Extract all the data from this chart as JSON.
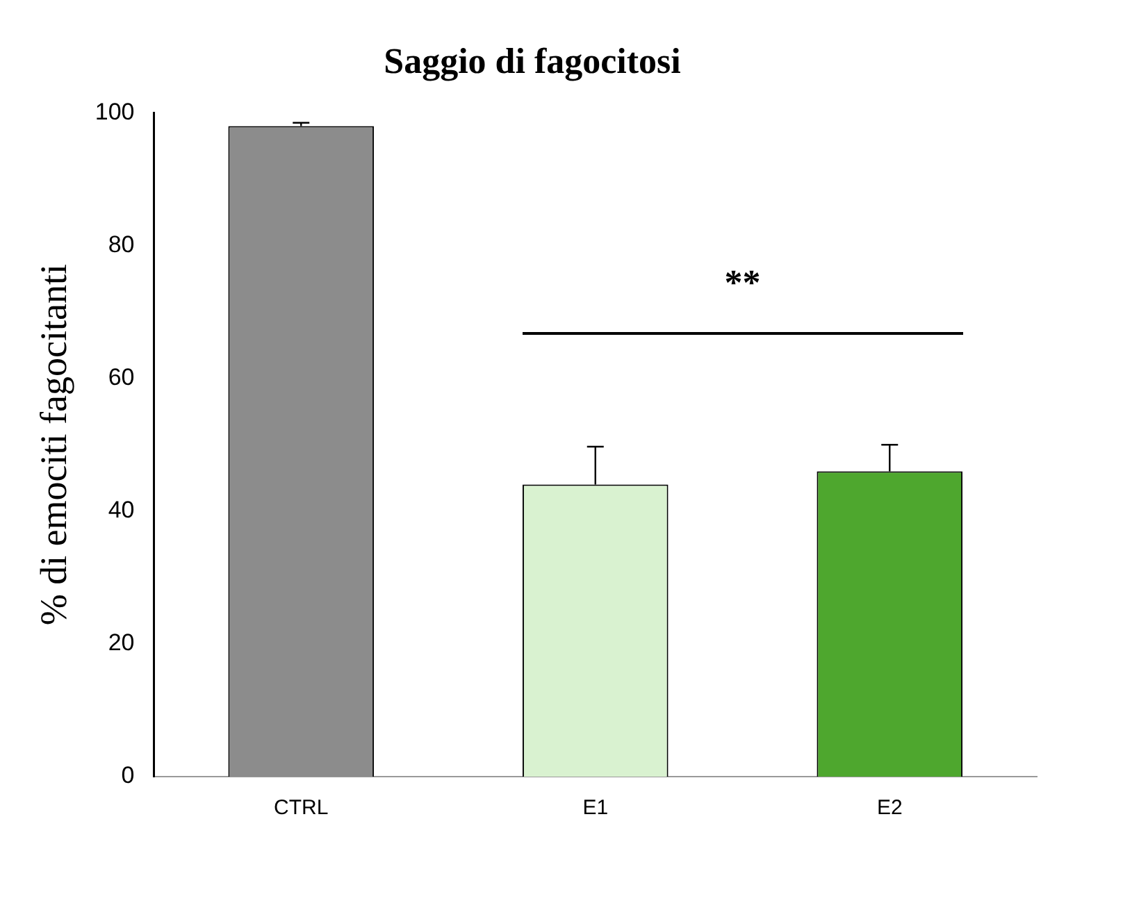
{
  "chart_data": {
    "type": "bar",
    "title": "Saggio di fagocitosi",
    "ylabel": "% di emociti fagocitanti",
    "categories": [
      "CTRL",
      "E1",
      "E2"
    ],
    "values": [
      98,
      44,
      46
    ],
    "colors": [
      "#8c8c8c",
      "#d9f2d0",
      "#4ea72e"
    ],
    "errors": [
      0.5,
      5.7,
      4
    ],
    "ylim": [
      0,
      100
    ],
    "yticks": [
      0,
      20,
      40,
      60,
      80,
      100
    ],
    "grid": false,
    "legend": false,
    "annotations": [
      "**"
    ]
  }
}
